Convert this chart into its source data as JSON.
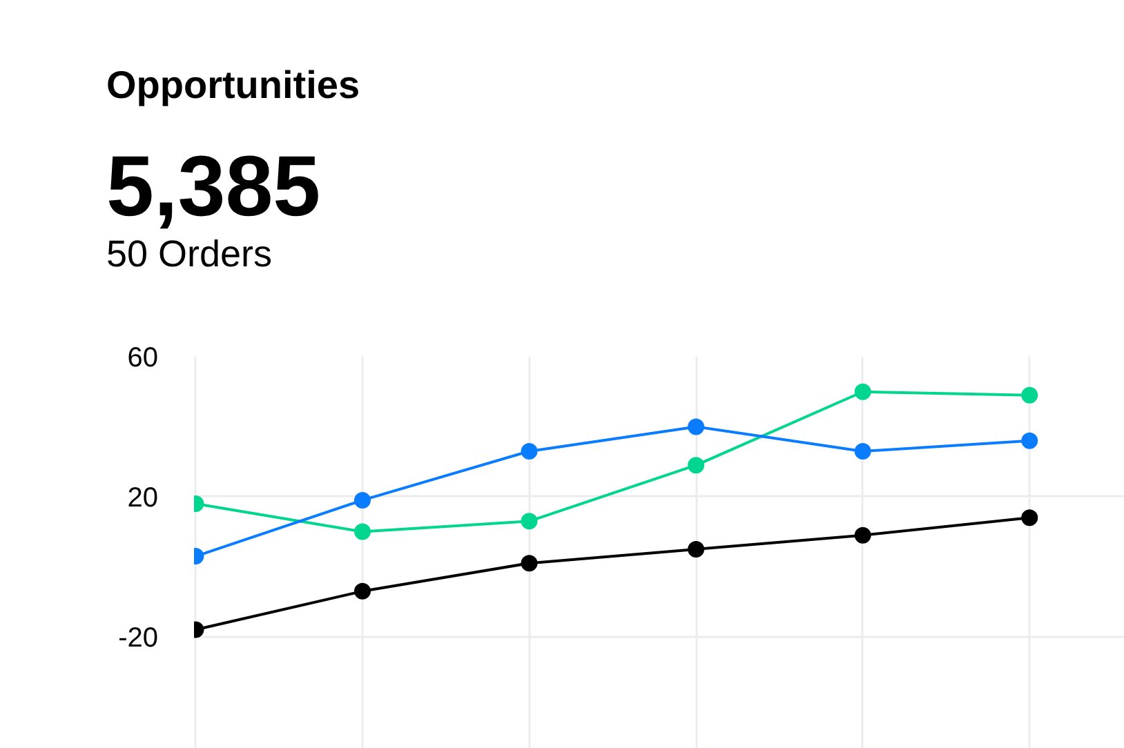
{
  "chart_data": {
    "type": "line",
    "title": "Opportunities",
    "annotations": [
      "5,385",
      "50 Orders"
    ],
    "categories": [
      null,
      null,
      null,
      null,
      null,
      null
    ],
    "series": [
      {
        "color": "#00d68f",
        "values": [
          18,
          10,
          13,
          29,
          50,
          49
        ]
      },
      {
        "color": "#0a7cff",
        "values": [
          3,
          19,
          33,
          40,
          33,
          36
        ]
      },
      {
        "color": "#000000",
        "values": [
          -18,
          -7,
          1,
          5,
          9,
          14
        ]
      }
    ],
    "ylim": [
      -52,
      60
    ],
    "yticks": [
      -20,
      20,
      60
    ],
    "grid": true,
    "marker": "circle",
    "line_style": "solid"
  }
}
